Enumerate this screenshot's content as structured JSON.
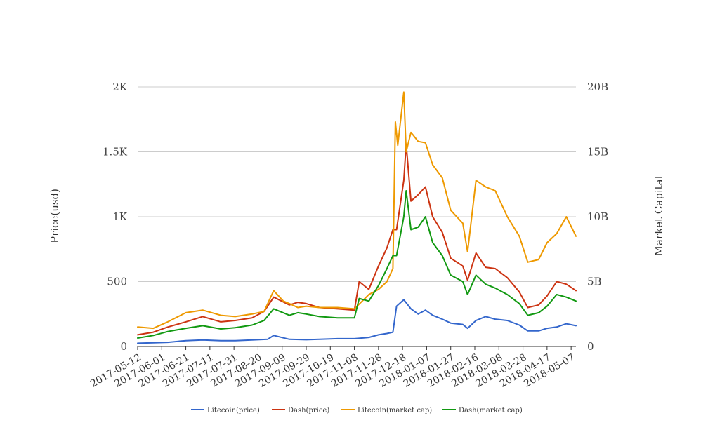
{
  "chart_data": {
    "type": "line",
    "title": "",
    "left_axis": {
      "label": "Price(usd)",
      "ylim": [
        0,
        2000
      ],
      "ticks": [
        0,
        500,
        1000,
        1500,
        2000
      ],
      "tick_labels": [
        "0",
        "500",
        "1K",
        "1.5K",
        "2K"
      ]
    },
    "right_axis": {
      "label": "Market Capital",
      "ylim": [
        0,
        20000000000
      ],
      "ticks": [
        0,
        5000000000,
        10000000000,
        15000000000,
        20000000000
      ],
      "tick_labels": [
        "0",
        "5B",
        "10B",
        "15B",
        "20B"
      ]
    },
    "grid": true,
    "legend_position": "bottom",
    "x_tick_labels": [
      "2017-05-12",
      "2017-06-01",
      "2017-06-21",
      "2017-07-11",
      "2017-07-31",
      "2017-08-20",
      "2017-09-09",
      "2017-09-29",
      "2017-10-19",
      "2017-11-08",
      "2017-11-28",
      "2017-12-18",
      "2018-01-07",
      "2018-01-27",
      "2018-02-16",
      "2018-03-08",
      "2018-03-28",
      "2018-04-17",
      "2018-05-07"
    ],
    "x_range": [
      "2017-05-12",
      "2018-05-11"
    ],
    "series": [
      {
        "name": "Litecoin(price)",
        "axis": "left",
        "color": "#3366cc",
        "x": [
          "2017-05-12",
          "2017-05-25",
          "2017-06-06",
          "2017-06-21",
          "2017-07-05",
          "2017-07-20",
          "2017-08-01",
          "2017-08-15",
          "2017-08-28",
          "2017-09-02",
          "2017-09-15",
          "2017-09-29",
          "2017-10-10",
          "2017-10-25",
          "2017-11-08",
          "2017-11-20",
          "2017-11-28",
          "2017-12-05",
          "2017-12-10",
          "2017-12-13",
          "2017-12-19",
          "2017-12-25",
          "2017-12-31",
          "2018-01-06",
          "2018-01-12",
          "2018-01-20",
          "2018-01-27",
          "2018-02-06",
          "2018-02-10",
          "2018-02-17",
          "2018-02-25",
          "2018-03-05",
          "2018-03-15",
          "2018-03-25",
          "2018-04-01",
          "2018-04-10",
          "2018-04-17",
          "2018-04-25",
          "2018-05-03",
          "2018-05-11"
        ],
        "y": [
          25,
          28,
          32,
          45,
          50,
          45,
          45,
          50,
          55,
          85,
          55,
          52,
          55,
          60,
          60,
          70,
          90,
          100,
          110,
          310,
          360,
          290,
          250,
          280,
          240,
          210,
          180,
          170,
          140,
          200,
          230,
          210,
          200,
          165,
          120,
          120,
          140,
          150,
          175,
          160
        ]
      },
      {
        "name": "Dash(price)",
        "axis": "left",
        "color": "#cc3311",
        "x": [
          "2017-05-12",
          "2017-05-25",
          "2017-06-06",
          "2017-06-21",
          "2017-07-05",
          "2017-07-20",
          "2017-08-01",
          "2017-08-15",
          "2017-08-25",
          "2017-09-02",
          "2017-09-15",
          "2017-09-22",
          "2017-09-29",
          "2017-10-10",
          "2017-10-25",
          "2017-11-08",
          "2017-11-12",
          "2017-11-20",
          "2017-11-28",
          "2017-12-05",
          "2017-12-10",
          "2017-12-13",
          "2017-12-19",
          "2017-12-21",
          "2017-12-25",
          "2017-12-31",
          "2018-01-06",
          "2018-01-12",
          "2018-01-20",
          "2018-01-27",
          "2018-02-06",
          "2018-02-10",
          "2018-02-17",
          "2018-02-25",
          "2018-03-05",
          "2018-03-15",
          "2018-03-25",
          "2018-04-01",
          "2018-04-10",
          "2018-04-17",
          "2018-04-25",
          "2018-05-03",
          "2018-05-11"
        ],
        "y": [
          90,
          110,
          150,
          190,
          230,
          190,
          200,
          220,
          270,
          380,
          320,
          340,
          330,
          300,
          290,
          280,
          500,
          440,
          620,
          760,
          900,
          900,
          1280,
          1560,
          1120,
          1170,
          1230,
          1000,
          880,
          680,
          620,
          510,
          720,
          610,
          600,
          530,
          420,
          300,
          320,
          390,
          500,
          480,
          430
        ]
      },
      {
        "name": "Litecoin(market cap)",
        "axis": "right",
        "color": "#ee9900",
        "x": [
          "2017-05-12",
          "2017-05-25",
          "2017-06-06",
          "2017-06-21",
          "2017-07-05",
          "2017-07-20",
          "2017-08-01",
          "2017-08-15",
          "2017-08-25",
          "2017-09-02",
          "2017-09-10",
          "2017-09-15",
          "2017-09-22",
          "2017-09-29",
          "2017-10-10",
          "2017-10-25",
          "2017-11-08",
          "2017-11-20",
          "2017-11-28",
          "2017-12-05",
          "2017-12-10",
          "2017-12-12",
          "2017-12-14",
          "2017-12-19",
          "2017-12-21",
          "2017-12-25",
          "2017-12-31",
          "2018-01-06",
          "2018-01-12",
          "2018-01-20",
          "2018-01-27",
          "2018-02-06",
          "2018-02-10",
          "2018-02-17",
          "2018-02-25",
          "2018-03-05",
          "2018-03-15",
          "2018-03-25",
          "2018-04-01",
          "2018-04-10",
          "2018-04-17",
          "2018-04-25",
          "2018-05-03",
          "2018-05-11"
        ],
        "y": [
          1500000000,
          1400000000,
          1900000000,
          2600000000,
          2800000000,
          2400000000,
          2300000000,
          2500000000,
          2700000000,
          4300000000,
          3500000000,
          3300000000,
          3000000000,
          3100000000,
          3000000000,
          3000000000,
          2900000000,
          4000000000,
          4400000000,
          5000000000,
          6000000000,
          17300000000,
          15500000000,
          19600000000,
          15000000000,
          16500000000,
          15800000000,
          15700000000,
          14000000000,
          13000000000,
          10500000000,
          9500000000,
          7300000000,
          12800000000,
          12300000000,
          12000000000,
          10000000000,
          8500000000,
          6500000000,
          6700000000,
          8000000000,
          8700000000,
          10000000000,
          8500000000
        ]
      },
      {
        "name": "Dash(market cap)",
        "axis": "right",
        "color": "#119911",
        "x": [
          "2017-05-12",
          "2017-05-25",
          "2017-06-06",
          "2017-06-21",
          "2017-07-05",
          "2017-07-20",
          "2017-08-01",
          "2017-08-15",
          "2017-08-25",
          "2017-09-02",
          "2017-09-15",
          "2017-09-22",
          "2017-09-29",
          "2017-10-10",
          "2017-10-25",
          "2017-11-08",
          "2017-11-12",
          "2017-11-20",
          "2017-11-28",
          "2017-12-05",
          "2017-12-10",
          "2017-12-13",
          "2017-12-19",
          "2017-12-21",
          "2017-12-25",
          "2017-12-31",
          "2018-01-06",
          "2018-01-12",
          "2018-01-20",
          "2018-01-27",
          "2018-02-06",
          "2018-02-10",
          "2018-02-17",
          "2018-02-25",
          "2018-03-05",
          "2018-03-15",
          "2018-03-25",
          "2018-04-01",
          "2018-04-10",
          "2018-04-17",
          "2018-04-25",
          "2018-05-03",
          "2018-05-11"
        ],
        "y": [
          650000000,
          850000000,
          1150000000,
          1400000000,
          1600000000,
          1350000000,
          1450000000,
          1650000000,
          2000000000,
          2900000000,
          2400000000,
          2600000000,
          2500000000,
          2300000000,
          2200000000,
          2200000000,
          3700000000,
          3500000000,
          4700000000,
          6000000000,
          7000000000,
          7000000000,
          10000000000,
          12000000000,
          9000000000,
          9200000000,
          10000000000,
          8000000000,
          7000000000,
          5500000000,
          5000000000,
          4000000000,
          5500000000,
          4800000000,
          4500000000,
          4000000000,
          3300000000,
          2400000000,
          2600000000,
          3100000000,
          4000000000,
          3800000000,
          3500000000
        ]
      }
    ]
  }
}
